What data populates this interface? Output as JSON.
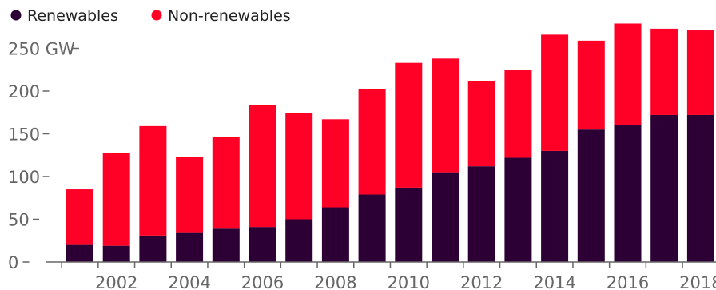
{
  "chart_data": {
    "type": "bar",
    "stacked": true,
    "title": "",
    "xlabel": "",
    "ylabel": "",
    "y_unit": "GW",
    "ylim": [
      0,
      280
    ],
    "y_ticks": [
      0,
      50,
      100,
      150,
      200,
      250
    ],
    "y_tick_labels": [
      "0",
      "50",
      "100",
      "150",
      "200",
      "250 GW"
    ],
    "categories": [
      "2001",
      "2002",
      "2003",
      "2004",
      "2005",
      "2006",
      "2007",
      "2008",
      "2009",
      "2010",
      "2011",
      "2012",
      "2013",
      "2014",
      "2015",
      "2016",
      "2017",
      "2018"
    ],
    "x_tick_labels_shown": [
      "2002",
      "2004",
      "2006",
      "2008",
      "2010",
      "2012",
      "2014",
      "2016",
      "2018"
    ],
    "series": [
      {
        "name": "Renewables",
        "color": "#2d0035",
        "values": [
          20,
          19,
          31,
          34,
          39,
          41,
          50,
          64,
          79,
          87,
          105,
          112,
          122,
          130,
          155,
          160,
          172,
          172
        ]
      },
      {
        "name": "Non-renewables",
        "color": "#ff0026",
        "values": [
          65,
          109,
          128,
          89,
          107,
          143,
          124,
          103,
          123,
          146,
          133,
          100,
          103,
          136,
          104,
          119,
          101,
          99
        ]
      }
    ],
    "grid": false,
    "legend_position": "top-left",
    "axis_color": "#666666"
  }
}
